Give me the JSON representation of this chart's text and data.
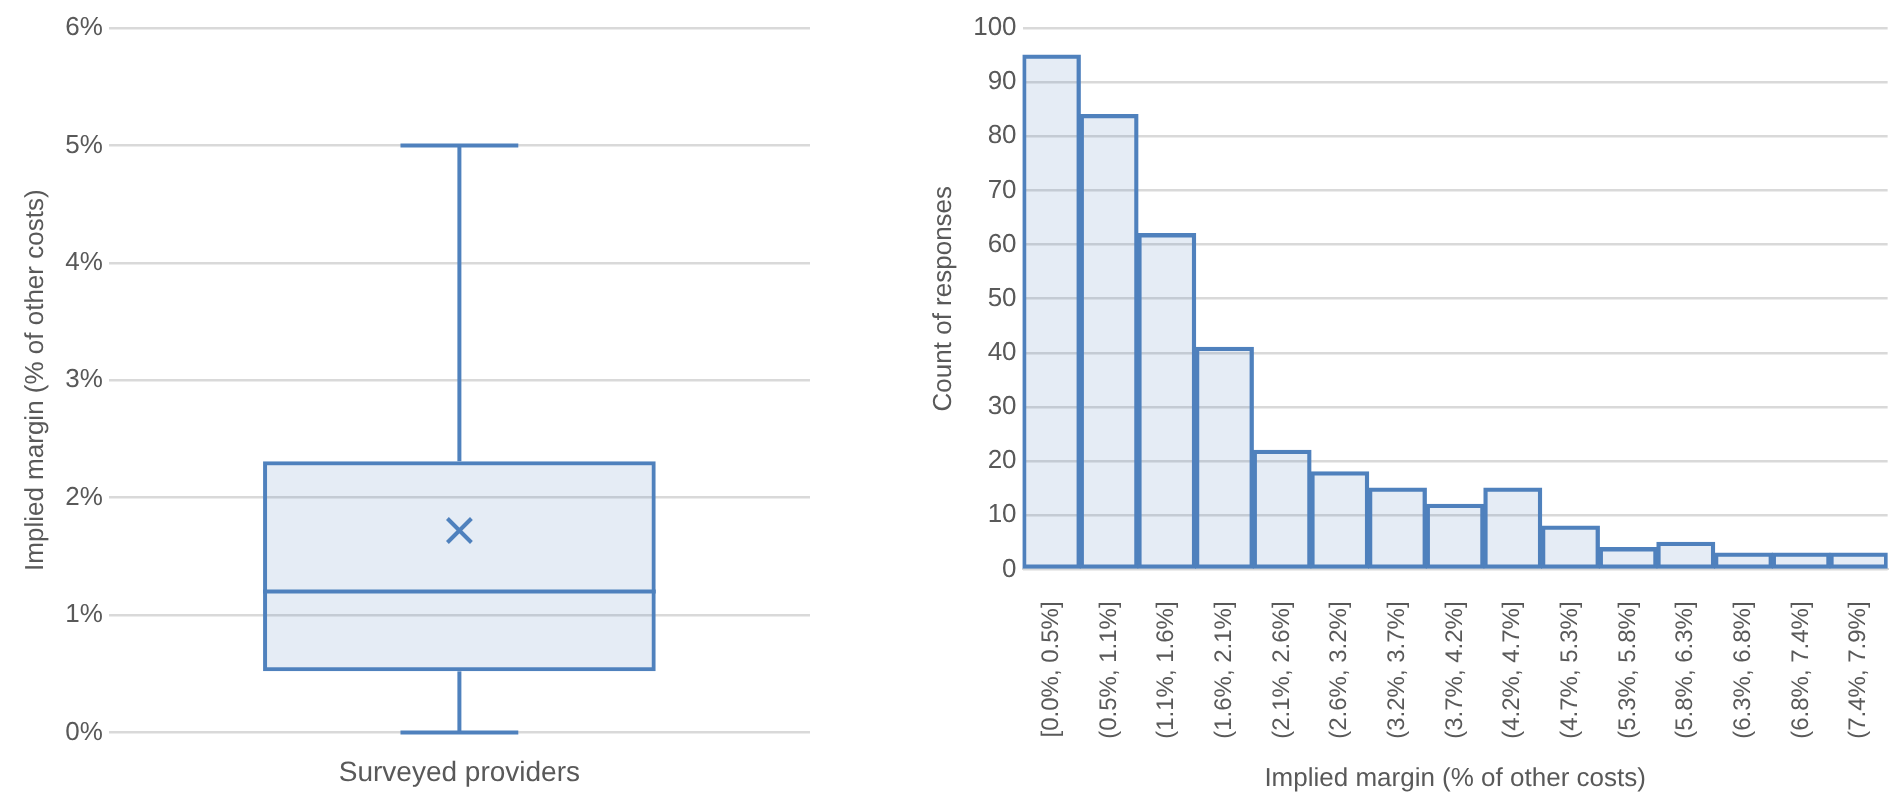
{
  "chart_data": [
    {
      "type": "box",
      "ylabel": "Implied margin (% of other costs)",
      "categories": [
        "Surveyed providers"
      ],
      "boxes": [
        {
          "low": 0,
          "q1": 0.52,
          "median": 1.2,
          "q3": 2.31,
          "high": 5,
          "mean": 1.72
        }
      ],
      "color": "#4f81bd",
      "ylim": [
        0,
        6
      ],
      "yticks": [
        {
          "value": 0,
          "label": "0%"
        },
        {
          "value": 1,
          "label": "1%"
        },
        {
          "value": 2,
          "label": "2%"
        },
        {
          "value": 3,
          "label": "3%"
        },
        {
          "value": 4,
          "label": "4%"
        },
        {
          "value": 5,
          "label": "5%"
        },
        {
          "value": 6,
          "label": "6%"
        }
      ],
      "grid": "y"
    },
    {
      "type": "bar",
      "xlabel": "Implied margin (% of other costs)",
      "ylabel": "Count of responses",
      "categories": [
        "[0.0%, 0.5%]",
        "(0.5%, 1.1%]",
        "(1.1%, 1.6%]",
        "(1.6%, 2.1%]",
        "(2.1%, 2.6%]",
        "(2.6%, 3.2%]",
        "(3.2%, 3.7%]",
        "(3.7%, 4.2%]",
        "(4.2%, 4.7%]",
        "(4.7%, 5.3%]",
        "(5.3%, 5.8%]",
        "(5.8%, 6.3%]",
        "(6.3%, 6.8%]",
        "(6.8%, 7.4%]",
        "(7.4%, 7.9%]"
      ],
      "series": [
        {
          "color": "#4f81bd",
          "values": [
            95,
            84,
            62,
            41,
            22,
            18,
            15,
            12,
            15,
            8,
            4,
            5,
            3,
            3,
            3
          ]
        }
      ],
      "ylim": [
        0,
        100
      ],
      "yticks": [
        0,
        10,
        20,
        30,
        40,
        50,
        60,
        70,
        80,
        90,
        100
      ],
      "grid": "y"
    }
  ]
}
